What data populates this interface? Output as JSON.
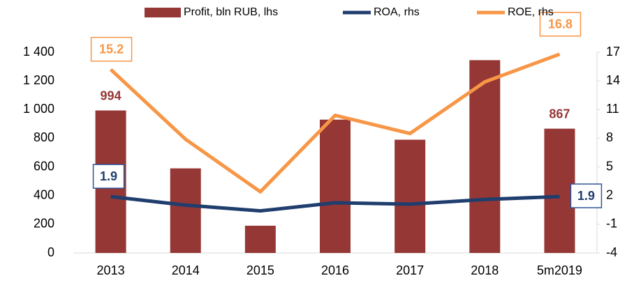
{
  "chart_data": {
    "type": "bar-line",
    "categories": [
      "2013",
      "2014",
      "2015",
      "2016",
      "2017",
      "2018",
      "5m2019"
    ],
    "series": [
      {
        "name": "Profit, bln RUB, lhs",
        "type": "bar",
        "color": "#953735",
        "values": [
          994,
          590,
          190,
          930,
          790,
          1345,
          867
        ],
        "value_labels": [
          "994",
          null,
          null,
          null,
          null,
          null,
          "867"
        ]
      },
      {
        "name": "ROA, rhs",
        "type": "line",
        "axis": "y2",
        "color": "#1f3e6e",
        "values": [
          1.9,
          1.0,
          0.4,
          1.25,
          1.1,
          1.6,
          1.9
        ],
        "value_labels": [
          "1.9",
          null,
          null,
          null,
          null,
          null,
          "1.9"
        ]
      },
      {
        "name": "ROE, rhs",
        "type": "line",
        "axis": "y2",
        "color": "#f79646",
        "values": [
          15.2,
          7.9,
          2.4,
          10.4,
          8.5,
          13.9,
          16.8
        ],
        "value_labels": [
          "15.2",
          null,
          null,
          null,
          null,
          null,
          "16.8"
        ]
      }
    ],
    "ylim": [
      0,
      1400
    ],
    "yticks": [
      0,
      200,
      400,
      600,
      800,
      {
        "value": 1000,
        "label": "1 000"
      },
      {
        "value": 1200,
        "label": "1 200"
      },
      {
        "value": 1400,
        "label": "1 400"
      }
    ],
    "y2lim": [
      -4,
      17
    ],
    "y2ticks": [
      -4,
      -1,
      2,
      5,
      8,
      11,
      14,
      17
    ],
    "legend": "top"
  }
}
